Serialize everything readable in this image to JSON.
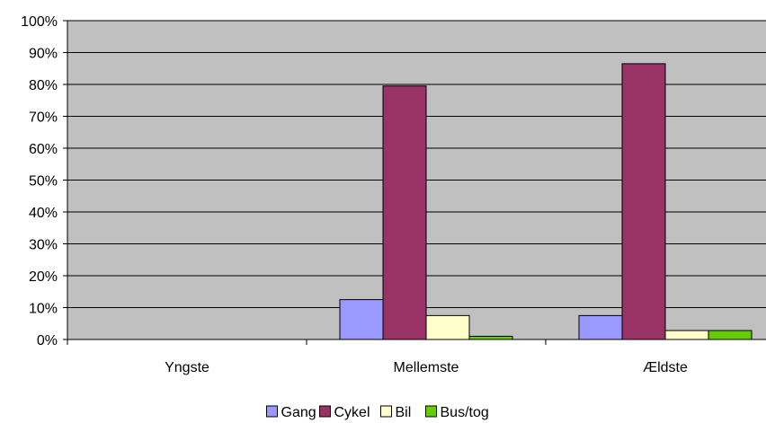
{
  "chart_data": {
    "type": "bar",
    "categories": [
      "Yngste",
      "Mellemste",
      "Ældste"
    ],
    "series": [
      {
        "name": "Gang",
        "color": "#9999ff",
        "values": [
          0,
          12.5,
          7.5
        ]
      },
      {
        "name": "Cykel",
        "color": "#993366",
        "values": [
          0,
          79.5,
          86.5
        ]
      },
      {
        "name": "Bil",
        "color": "#ffffcc",
        "values": [
          0,
          7.5,
          2.8
        ]
      },
      {
        "name": "Bus/tog",
        "color": "#66cc00",
        "values": [
          0,
          1.0,
          2.8
        ]
      }
    ],
    "y_ticks": [
      "0%",
      "10%",
      "20%",
      "30%",
      "40%",
      "50%",
      "60%",
      "70%",
      "80%",
      "90%",
      "100%"
    ],
    "ylim": [
      0,
      100
    ],
    "grid": true,
    "plot_background": "#c0c0c0",
    "legend_position": "bottom"
  }
}
